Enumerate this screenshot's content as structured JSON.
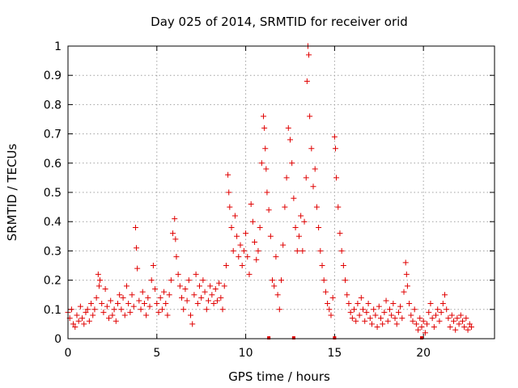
{
  "chart_data": {
    "type": "scatter",
    "title": "Day 025 of 2014, SRMTID for receiver orid",
    "xlabel": "GPS time / hours",
    "ylabel": "SRMTID / TECUs",
    "xlim": [
      0,
      24
    ],
    "ylim": [
      0,
      1
    ],
    "xticks": [
      0,
      5,
      10,
      15,
      20
    ],
    "xtick_labels": [
      "0",
      "5",
      "10",
      "15",
      "20"
    ],
    "yticks": [
      0,
      0.1,
      0.2,
      0.3,
      0.4,
      0.5,
      0.6,
      0.7,
      0.8,
      0.9,
      1
    ],
    "ytick_labels": [
      "0",
      "0.1",
      "0.2",
      "0.3",
      "0.4",
      "0.5",
      "0.6",
      "0.7",
      "0.8",
      "0.9",
      "1"
    ],
    "grid": true,
    "marker": "+",
    "marker_color": "#e00000",
    "series": [
      {
        "name": "SRMTID",
        "points": [
          [
            0.0,
            0.09
          ],
          [
            0.1,
            0.07
          ],
          [
            0.2,
            0.1
          ],
          [
            0.3,
            0.05
          ],
          [
            0.4,
            0.04
          ],
          [
            0.5,
            0.08
          ],
          [
            0.6,
            0.06
          ],
          [
            0.7,
            0.11
          ],
          [
            0.8,
            0.07
          ],
          [
            0.9,
            0.05
          ],
          [
            1.0,
            0.09
          ],
          [
            1.1,
            0.1
          ],
          [
            1.2,
            0.06
          ],
          [
            1.3,
            0.12
          ],
          [
            1.4,
            0.08
          ],
          [
            1.5,
            0.1
          ],
          [
            1.6,
            0.14
          ],
          [
            1.7,
            0.22
          ],
          [
            1.75,
            0.18
          ],
          [
            1.8,
            0.2
          ],
          [
            1.9,
            0.12
          ],
          [
            2.0,
            0.09
          ],
          [
            2.1,
            0.17
          ],
          [
            2.2,
            0.11
          ],
          [
            2.3,
            0.07
          ],
          [
            2.4,
            0.13
          ],
          [
            2.5,
            0.08
          ],
          [
            2.6,
            0.1
          ],
          [
            2.7,
            0.06
          ],
          [
            2.8,
            0.12
          ],
          [
            2.9,
            0.15
          ],
          [
            3.0,
            0.1
          ],
          [
            3.1,
            0.14
          ],
          [
            3.2,
            0.08
          ],
          [
            3.3,
            0.18
          ],
          [
            3.4,
            0.12
          ],
          [
            3.5,
            0.09
          ],
          [
            3.6,
            0.15
          ],
          [
            3.7,
            0.11
          ],
          [
            3.8,
            0.38
          ],
          [
            3.85,
            0.31
          ],
          [
            3.9,
            0.24
          ],
          [
            4.0,
            0.13
          ],
          [
            4.1,
            0.1
          ],
          [
            4.2,
            0.16
          ],
          [
            4.3,
            0.12
          ],
          [
            4.4,
            0.08
          ],
          [
            4.5,
            0.14
          ],
          [
            4.6,
            0.11
          ],
          [
            4.7,
            0.2
          ],
          [
            4.8,
            0.25
          ],
          [
            4.9,
            0.17
          ],
          [
            5.0,
            0.12
          ],
          [
            5.1,
            0.09
          ],
          [
            5.2,
            0.14
          ],
          [
            5.3,
            0.1
          ],
          [
            5.4,
            0.16
          ],
          [
            5.5,
            0.12
          ],
          [
            5.6,
            0.08
          ],
          [
            5.7,
            0.15
          ],
          [
            5.8,
            0.2
          ],
          [
            5.9,
            0.36
          ],
          [
            6.0,
            0.41
          ],
          [
            6.05,
            0.34
          ],
          [
            6.1,
            0.28
          ],
          [
            6.2,
            0.22
          ],
          [
            6.3,
            0.18
          ],
          [
            6.4,
            0.14
          ],
          [
            6.5,
            0.1
          ],
          [
            6.6,
            0.17
          ],
          [
            6.7,
            0.13
          ],
          [
            6.8,
            0.2
          ],
          [
            6.9,
            0.08
          ],
          [
            7.0,
            0.05
          ],
          [
            7.1,
            0.15
          ],
          [
            7.2,
            0.22
          ],
          [
            7.3,
            0.12
          ],
          [
            7.4,
            0.18
          ],
          [
            7.5,
            0.14
          ],
          [
            7.6,
            0.2
          ],
          [
            7.7,
            0.16
          ],
          [
            7.8,
            0.1
          ],
          [
            7.9,
            0.13
          ],
          [
            8.0,
            0.18
          ],
          [
            8.1,
            0.15
          ],
          [
            8.2,
            0.12
          ],
          [
            8.3,
            0.17
          ],
          [
            8.4,
            0.13
          ],
          [
            8.5,
            0.19
          ],
          [
            8.6,
            0.14
          ],
          [
            8.7,
            0.1
          ],
          [
            8.8,
            0.18
          ],
          [
            8.9,
            0.25
          ],
          [
            9.0,
            0.56
          ],
          [
            9.05,
            0.5
          ],
          [
            9.1,
            0.45
          ],
          [
            9.2,
            0.38
          ],
          [
            9.3,
            0.3
          ],
          [
            9.4,
            0.42
          ],
          [
            9.5,
            0.35
          ],
          [
            9.6,
            0.28
          ],
          [
            9.7,
            0.32
          ],
          [
            9.8,
            0.25
          ],
          [
            9.9,
            0.3
          ],
          [
            10.0,
            0.36
          ],
          [
            10.1,
            0.28
          ],
          [
            10.2,
            0.22
          ],
          [
            10.3,
            0.46
          ],
          [
            10.4,
            0.4
          ],
          [
            10.5,
            0.33
          ],
          [
            10.6,
            0.27
          ],
          [
            10.7,
            0.3
          ],
          [
            10.8,
            0.38
          ],
          [
            10.9,
            0.6
          ],
          [
            11.0,
            0.76
          ],
          [
            11.05,
            0.72
          ],
          [
            11.1,
            0.65
          ],
          [
            11.15,
            0.58
          ],
          [
            11.2,
            0.5
          ],
          [
            11.3,
            0.44
          ],
          [
            11.4,
            0.35
          ],
          [
            11.5,
            0.2
          ],
          [
            11.6,
            0.18
          ],
          [
            11.7,
            0.28
          ],
          [
            11.8,
            0.15
          ],
          [
            11.9,
            0.1
          ],
          [
            12.0,
            0.2
          ],
          [
            12.1,
            0.32
          ],
          [
            12.2,
            0.45
          ],
          [
            12.3,
            0.55
          ],
          [
            12.4,
            0.72
          ],
          [
            12.5,
            0.68
          ],
          [
            12.6,
            0.6
          ],
          [
            12.7,
            0.48
          ],
          [
            12.8,
            0.38
          ],
          [
            12.9,
            0.3
          ],
          [
            13.0,
            0.35
          ],
          [
            13.1,
            0.42
          ],
          [
            13.2,
            0.3
          ],
          [
            13.3,
            0.4
          ],
          [
            13.4,
            0.55
          ],
          [
            13.45,
            0.88
          ],
          [
            13.5,
            1.0
          ],
          [
            13.55,
            0.97
          ],
          [
            13.6,
            0.76
          ],
          [
            13.7,
            0.65
          ],
          [
            13.8,
            0.52
          ],
          [
            13.9,
            0.58
          ],
          [
            14.0,
            0.45
          ],
          [
            14.1,
            0.38
          ],
          [
            14.2,
            0.3
          ],
          [
            14.3,
            0.25
          ],
          [
            14.4,
            0.2
          ],
          [
            14.5,
            0.16
          ],
          [
            14.6,
            0.12
          ],
          [
            14.7,
            0.1
          ],
          [
            14.8,
            0.08
          ],
          [
            14.9,
            0.14
          ],
          [
            15.0,
            0.69
          ],
          [
            15.05,
            0.65
          ],
          [
            15.1,
            0.55
          ],
          [
            15.2,
            0.45
          ],
          [
            15.3,
            0.36
          ],
          [
            15.4,
            0.3
          ],
          [
            15.5,
            0.25
          ],
          [
            15.6,
            0.2
          ],
          [
            15.7,
            0.15
          ],
          [
            15.8,
            0.12
          ],
          [
            15.9,
            0.09
          ],
          [
            16.0,
            0.07
          ],
          [
            16.1,
            0.1
          ],
          [
            16.2,
            0.06
          ],
          [
            16.3,
            0.12
          ],
          [
            16.4,
            0.08
          ],
          [
            16.5,
            0.14
          ],
          [
            16.6,
            0.1
          ],
          [
            16.7,
            0.06
          ],
          [
            16.8,
            0.09
          ],
          [
            16.9,
            0.12
          ],
          [
            17.0,
            0.07
          ],
          [
            17.1,
            0.05
          ],
          [
            17.2,
            0.1
          ],
          [
            17.3,
            0.08
          ],
          [
            17.4,
            0.04
          ],
          [
            17.5,
            0.11
          ],
          [
            17.6,
            0.07
          ],
          [
            17.7,
            0.05
          ],
          [
            17.8,
            0.09
          ],
          [
            17.9,
            0.13
          ],
          [
            18.0,
            0.06
          ],
          [
            18.1,
            0.1
          ],
          [
            18.2,
            0.08
          ],
          [
            18.3,
            0.12
          ],
          [
            18.4,
            0.07
          ],
          [
            18.5,
            0.05
          ],
          [
            18.6,
            0.09
          ],
          [
            18.7,
            0.11
          ],
          [
            18.8,
            0.07
          ],
          [
            18.9,
            0.16
          ],
          [
            19.0,
            0.26
          ],
          [
            19.05,
            0.22
          ],
          [
            19.1,
            0.18
          ],
          [
            19.2,
            0.12
          ],
          [
            19.3,
            0.08
          ],
          [
            19.4,
            0.06
          ],
          [
            19.5,
            0.1
          ],
          [
            19.6,
            0.05
          ],
          [
            19.7,
            0.03
          ],
          [
            19.8,
            0.07
          ],
          [
            19.9,
            0.04
          ],
          [
            20.0,
            0.06
          ],
          [
            20.1,
            0.02
          ],
          [
            20.2,
            0.05
          ],
          [
            20.3,
            0.09
          ],
          [
            20.4,
            0.12
          ],
          [
            20.5,
            0.07
          ],
          [
            20.6,
            0.04
          ],
          [
            20.7,
            0.08
          ],
          [
            20.8,
            0.1
          ],
          [
            20.9,
            0.06
          ],
          [
            21.0,
            0.09
          ],
          [
            21.1,
            0.12
          ],
          [
            21.2,
            0.15
          ],
          [
            21.3,
            0.1
          ],
          [
            21.4,
            0.07
          ],
          [
            21.5,
            0.04
          ],
          [
            21.6,
            0.08
          ],
          [
            21.7,
            0.06
          ],
          [
            21.8,
            0.03
          ],
          [
            21.9,
            0.07
          ],
          [
            22.0,
            0.05
          ],
          [
            22.1,
            0.08
          ],
          [
            22.2,
            0.06
          ],
          [
            22.3,
            0.04
          ],
          [
            22.4,
            0.07
          ],
          [
            22.5,
            0.03
          ],
          [
            22.6,
            0.05
          ],
          [
            22.7,
            0.04
          ]
        ]
      }
    ],
    "zero_markers": [
      11.3,
      12.7,
      15.0,
      19.9
    ]
  }
}
